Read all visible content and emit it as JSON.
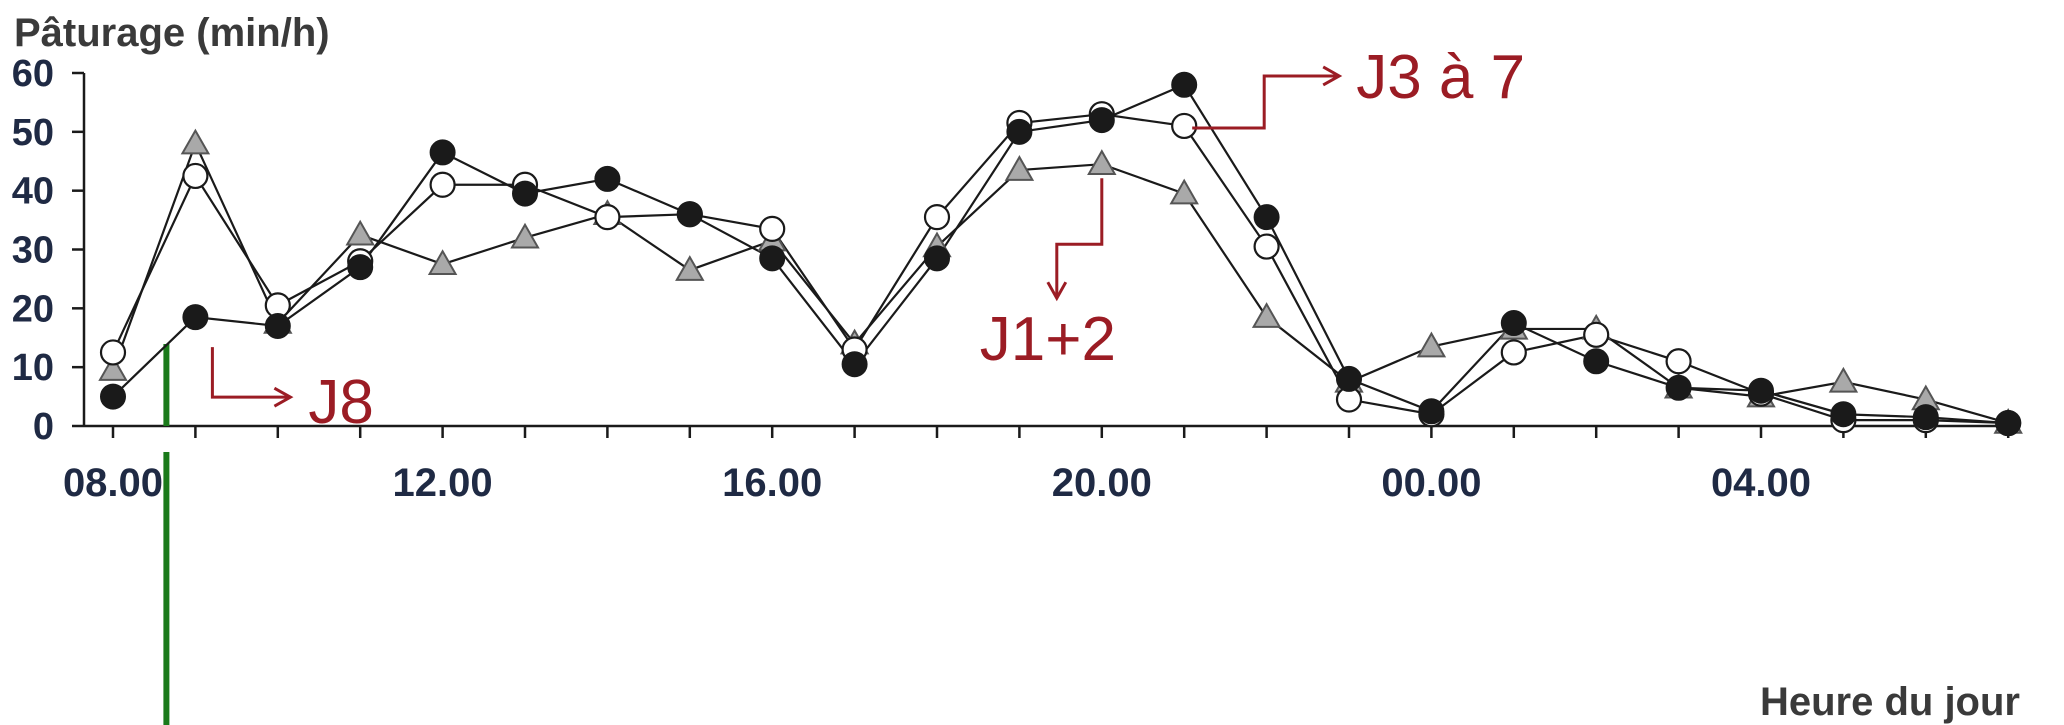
{
  "chart_data": {
    "type": "line",
    "ylabel": "Pâturage (min/h)",
    "xlabel": "Heure du jour",
    "ylim": [
      0,
      60
    ],
    "yticks": [
      0,
      10,
      20,
      30,
      40,
      50,
      60
    ],
    "hours": [
      8,
      9,
      10,
      11,
      12,
      13,
      14,
      15,
      16,
      17,
      18,
      19,
      20,
      21,
      22,
      23,
      0,
      1,
      2,
      3,
      4,
      5,
      6,
      7
    ],
    "xtick_labels": [
      {
        "hour": 8,
        "label": "08.00"
      },
      {
        "hour": 12,
        "label": "12.00"
      },
      {
        "hour": 16,
        "label": "16.00"
      },
      {
        "hour": 20,
        "label": "20.00"
      },
      {
        "hour": 0,
        "label": "00.00"
      },
      {
        "hour": 4,
        "label": "04.00"
      }
    ],
    "grid": false,
    "series": [
      {
        "marker": "filled-circle",
        "values": [
          5,
          18.5,
          17,
          27,
          46.5,
          39.5,
          42,
          36,
          28.5,
          10.5,
          28.5,
          50,
          52,
          58,
          35.5,
          8,
          2.5,
          17.5,
          11,
          6.5,
          6,
          2,
          1.5,
          0.5
        ]
      },
      {
        "marker": "open-circle",
        "values": [
          12.5,
          42.5,
          20.5,
          28,
          41,
          41,
          35.5,
          36,
          33.5,
          13,
          35.5,
          51.5,
          53,
          51,
          30.5,
          4.5,
          2,
          12.5,
          15.5,
          11,
          5.5,
          1,
          1,
          0.5
        ]
      },
      {
        "marker": "triangle",
        "values": [
          9.5,
          48,
          17.5,
          32.5,
          27.5,
          32,
          36,
          26.5,
          31.5,
          14,
          30.5,
          43.5,
          44.5,
          39.5,
          18.5,
          7.5,
          13.5,
          16.5,
          16.5,
          6.5,
          5,
          7.5,
          4.5,
          0.5
        ]
      }
    ],
    "annotations": [
      {
        "text": "J3 à 7",
        "target_hour": 21,
        "target_value": 51
      },
      {
        "text": "J1+2",
        "target_hour": 20,
        "target_value": 44.5
      },
      {
        "text": "J8",
        "target_hour": 9,
        "target_value": 18.5
      }
    ],
    "marker_line": {
      "hour": 9,
      "color": "#1a7a1a"
    },
    "colors": {
      "line": "#1a1a1a",
      "marker_fill": "#1a1a1a",
      "triangle_fill": "#a9a9a9",
      "annotation": "#9b1c24",
      "axis_text": "#1f2a44"
    }
  }
}
